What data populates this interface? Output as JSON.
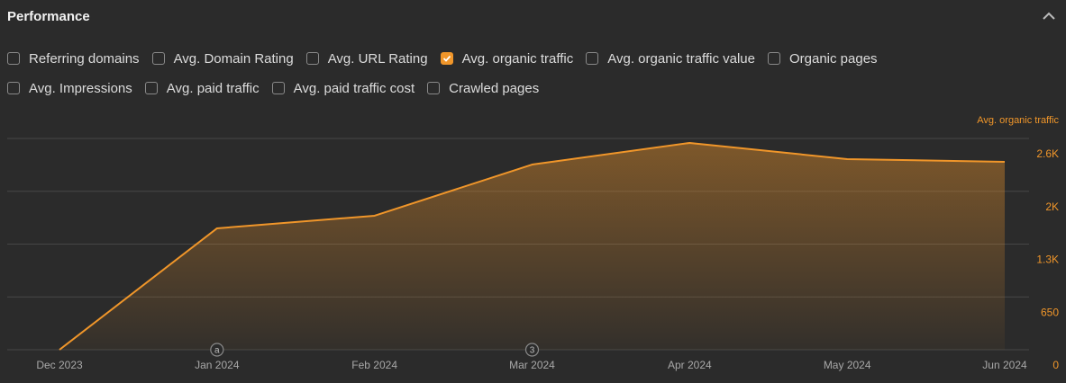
{
  "header": {
    "title": "Performance"
  },
  "filters": [
    [
      {
        "label": "Referring domains",
        "checked": false
      },
      {
        "label": "Avg. Domain Rating",
        "checked": false
      },
      {
        "label": "Avg. URL Rating",
        "checked": false
      },
      {
        "label": "Avg. organic traffic",
        "checked": true
      },
      {
        "label": "Avg. organic traffic value",
        "checked": false
      },
      {
        "label": "Organic pages",
        "checked": false
      }
    ],
    [
      {
        "label": "Avg. Impressions",
        "checked": false
      },
      {
        "label": "Avg. paid traffic",
        "checked": false
      },
      {
        "label": "Avg. paid traffic cost",
        "checked": false
      },
      {
        "label": "Crawled pages",
        "checked": false
      }
    ]
  ],
  "chart_data": {
    "type": "area",
    "categories": [
      "Dec 2023",
      "Jan 2024",
      "Feb 2024",
      "Mar 2024",
      "Apr 2024",
      "May 2024",
      "Jun 2024"
    ],
    "series": [
      {
        "name": "Avg. organic traffic",
        "color": "#f0962a",
        "values": [
          0,
          1494,
          1649,
          2279,
          2545,
          2346,
          2312
        ]
      }
    ],
    "ylim": [
      0,
      2600
    ],
    "yticks": [
      0,
      650,
      {
        "value": 1300,
        "label": "1.3K"
      },
      {
        "value": 1950,
        "label": "2K"
      },
      {
        "value": 2600,
        "label": "2.6K"
      }
    ],
    "grid": true,
    "annotations": [
      {
        "x": "Jan 2024",
        "label": "a"
      },
      {
        "x": "Mar 2024",
        "label": "3"
      }
    ]
  }
}
